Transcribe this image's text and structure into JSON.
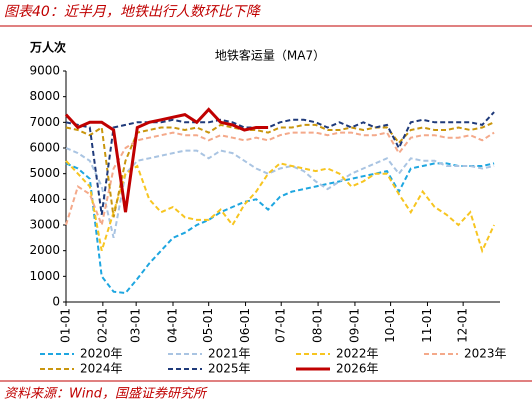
{
  "header": {
    "title": "图表40：近半月，地铁出行人数环比下降"
  },
  "chart_data": {
    "type": "line",
    "title": "地铁客运量（MA7）",
    "y_label": "万人次",
    "x": [
      0,
      10,
      20,
      30,
      40,
      50,
      60,
      70,
      80,
      90,
      100,
      110,
      120,
      130,
      140,
      150,
      160,
      170,
      180,
      190,
      200,
      210,
      220,
      230,
      240,
      250,
      260,
      270,
      280,
      290,
      300,
      310,
      320,
      330,
      340,
      350,
      360
    ],
    "xlim": [
      0,
      365
    ],
    "xticks": [
      {
        "value": 0,
        "label": "01-01"
      },
      {
        "value": 31,
        "label": "02-01"
      },
      {
        "value": 59,
        "label": "03-01"
      },
      {
        "value": 90,
        "label": "04-01"
      },
      {
        "value": 120,
        "label": "05-01"
      },
      {
        "value": 151,
        "label": "06-01"
      },
      {
        "value": 181,
        "label": "07-01"
      },
      {
        "value": 212,
        "label": "08-01"
      },
      {
        "value": 243,
        "label": "09-01"
      },
      {
        "value": 273,
        "label": "10-01"
      },
      {
        "value": 304,
        "label": "11-01"
      },
      {
        "value": 334,
        "label": "12-01"
      }
    ],
    "ylim": [
      0,
      9000
    ],
    "yticks": [
      0,
      1000,
      2000,
      3000,
      4000,
      5000,
      6000,
      7000,
      8000,
      9000
    ],
    "series": [
      {
        "name": "2020年",
        "color": "#1ea6e0",
        "dash": true,
        "values": [
          5400,
          5200,
          4800,
          1000,
          400,
          350,
          900,
          1500,
          2000,
          2500,
          2700,
          3000,
          3200,
          3500,
          3700,
          3900,
          4000,
          3600,
          4100,
          4300,
          4400,
          4500,
          4600,
          4700,
          4800,
          4900,
          5000,
          5100,
          4300,
          5200,
          5300,
          5400,
          5400,
          5300,
          5300,
          5300,
          5400
        ]
      },
      {
        "name": "2021年",
        "color": "#a9c4e2",
        "dash": true,
        "values": [
          6000,
          5800,
          5500,
          4500,
          2500,
          5000,
          5500,
          5600,
          5700,
          5800,
          5900,
          5900,
          5600,
          5900,
          5800,
          5500,
          5200,
          5000,
          5200,
          5300,
          5100,
          4700,
          4400,
          4700,
          5000,
          5200,
          5400,
          5600,
          5000,
          5600,
          5500,
          5500,
          5300,
          5300,
          5300,
          5200,
          5300
        ]
      },
      {
        "name": "2022年",
        "color": "#f7c520",
        "dash": true,
        "values": [
          5500,
          5000,
          4500,
          2000,
          3500,
          5000,
          5300,
          4000,
          3500,
          3700,
          3300,
          3200,
          3200,
          3600,
          3000,
          3800,
          4300,
          5000,
          5400,
          5300,
          5200,
          5100,
          5200,
          5000,
          4500,
          4700,
          5000,
          5000,
          4200,
          3500,
          4300,
          3700,
          3400,
          3000,
          3500,
          2000,
          3000
        ]
      },
      {
        "name": "2023年",
        "color": "#f4a98a",
        "dash": true,
        "values": [
          3000,
          4500,
          4200,
          3000,
          5200,
          6000,
          6300,
          6400,
          6500,
          6600,
          6500,
          6500,
          6300,
          6500,
          6400,
          6300,
          6400,
          6300,
          6500,
          6600,
          6600,
          6600,
          6500,
          6600,
          6600,
          6500,
          6500,
          6600,
          5800,
          6400,
          6500,
          6500,
          6400,
          6400,
          6500,
          6300,
          6600
        ]
      },
      {
        "name": "2024年",
        "color": "#c9960e",
        "dash": true,
        "values": [
          6800,
          6700,
          6500,
          6800,
          3300,
          5500,
          6600,
          6700,
          6800,
          6800,
          6700,
          6800,
          6600,
          6900,
          6800,
          6700,
          6700,
          6600,
          6800,
          6800,
          6900,
          6900,
          6700,
          6700,
          6800,
          6700,
          6800,
          6800,
          6200,
          6700,
          6800,
          6700,
          6700,
          6800,
          6700,
          6800,
          7000
        ]
      },
      {
        "name": "2025年",
        "color": "#1f3a7a",
        "dash": true,
        "values": [
          7000,
          6900,
          6800,
          3400,
          6800,
          6900,
          7000,
          7000,
          7000,
          7100,
          7000,
          7000,
          7000,
          7100,
          7000,
          6800,
          6800,
          6800,
          7000,
          7100,
          7100,
          7000,
          6800,
          7000,
          6800,
          7000,
          6800,
          6900,
          6000,
          7000,
          7100,
          7000,
          7000,
          7000,
          7000,
          6900,
          7400
        ]
      },
      {
        "name": "2026年",
        "color": "#c00000",
        "dash": false,
        "values": [
          7300,
          6800,
          7000,
          7000,
          6700,
          3500,
          6800,
          7000,
          7100,
          7200,
          7300,
          7000,
          7500,
          7000,
          6900,
          6700,
          6800,
          6800,
          null,
          null,
          null,
          null,
          null,
          null,
          null,
          null,
          null,
          null,
          null,
          null,
          null,
          null,
          null,
          null,
          null,
          null,
          null
        ]
      }
    ]
  },
  "source": "资料来源：Wind，国盛证券研究所"
}
